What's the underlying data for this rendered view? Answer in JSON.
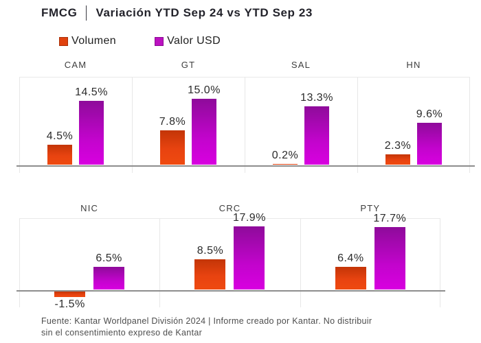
{
  "title": {
    "brand": "FMCG",
    "text": "Variación YTD Sep 24 vs YTD Sep 23"
  },
  "legend": {
    "items": [
      {
        "label": "Volumen",
        "color": "#e0420e"
      },
      {
        "label": "Valor USD",
        "color": "#bb11c0"
      }
    ]
  },
  "chart_data": {
    "type": "bar",
    "unit": "%",
    "title": "FMCG | Variación YTD Sep 24 vs YTD Sep 23",
    "legend_position": "top",
    "grid": false,
    "series_colors": {
      "Volumen": "#e0420e",
      "Valor USD": "#bb11c0"
    },
    "rows": [
      {
        "categories": [
          "CAM",
          "GT",
          "SAL",
          "HN"
        ],
        "series": [
          {
            "name": "Volumen",
            "values": [
              4.5,
              7.8,
              0.2,
              2.3
            ]
          },
          {
            "name": "Valor USD",
            "values": [
              14.5,
              15.0,
              13.3,
              9.6
            ]
          }
        ]
      },
      {
        "categories": [
          "NIC",
          "CRC",
          "PTY"
        ],
        "series": [
          {
            "name": "Volumen",
            "values": [
              -1.5,
              8.5,
              6.4
            ]
          },
          {
            "name": "Valor USD",
            "values": [
              6.5,
              17.9,
              17.7
            ]
          }
        ]
      }
    ]
  },
  "footer": {
    "line1": "Fuente: Kantar Worldpanel División 2024 | Informe creado por Kantar. No distribuir",
    "line2": "sin el consentimiento expreso de Kantar"
  }
}
